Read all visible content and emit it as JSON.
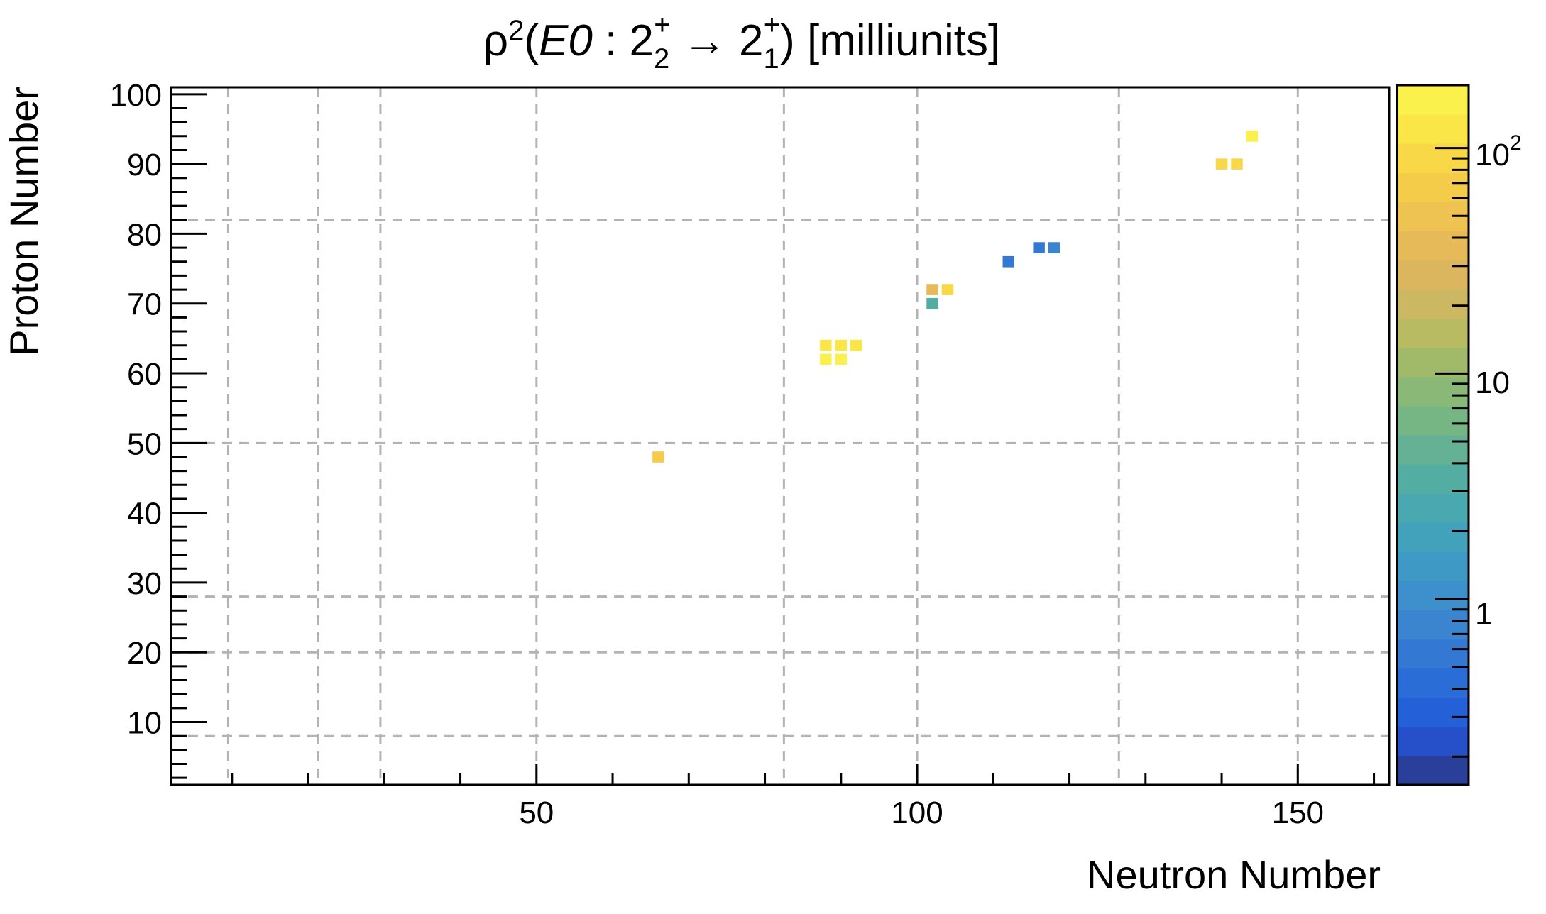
{
  "chart_data": {
    "type": "heatmap",
    "title": "ρ²(E0 : 2₂⁺ → 2₁⁺) [milliunits]",
    "title_parts": {
      "rho": "ρ",
      "rho_sup": "2",
      "open": "(",
      "e0": "E0",
      "colon": " : 2",
      "sub1": "2",
      "sup1": "+",
      "arrow": " → 2",
      "sub2": "1",
      "sup2": "+",
      "close": ") [milliunits]"
    },
    "xlabel": "Neutron Number",
    "ylabel": "Proton Number",
    "xlim": [
      2,
      162
    ],
    "ylim": [
      1,
      101
    ],
    "x_ticks": [
      50,
      100,
      150
    ],
    "x_tick_labels": [
      "50",
      "100",
      "150"
    ],
    "y_ticks": [
      10,
      20,
      30,
      40,
      50,
      60,
      70,
      80,
      90,
      100
    ],
    "y_tick_labels": [
      "10",
      "20",
      "30",
      "40",
      "50",
      "60",
      "70",
      "80",
      "90",
      "100"
    ],
    "x_gridlines": [
      9.5,
      21.3,
      29.5,
      50,
      82.5,
      100,
      126.5,
      150
    ],
    "y_gridlines": [
      8,
      20,
      28,
      50,
      82
    ],
    "grid": true,
    "z_scale": "log",
    "z_range": [
      0.15,
      190
    ],
    "colorbar_ticks": [
      1,
      10,
      100
    ],
    "colorbar_tick_labels": {
      "one": "1",
      "ten": "10",
      "hundred_base": "10",
      "hundred_exp": "2"
    },
    "colorbar_colors": [
      "#2a3f9a",
      "#2550c9",
      "#2460d8",
      "#2b6dd6",
      "#3378d3",
      "#3b84cf",
      "#3d90cb",
      "#3e9ac4",
      "#42a2bc",
      "#4aa8b0",
      "#54ada3",
      "#64b195",
      "#76b685",
      "#8ab877",
      "#a0ba6a",
      "#b8bb62",
      "#ccb862",
      "#dbb65e",
      "#e6ba58",
      "#efc351",
      "#f4cc4a",
      "#f8d846",
      "#fbe647",
      "#faf14d"
    ],
    "cells": [
      {
        "n": 66,
        "z": 48,
        "v": 60
      },
      {
        "n": 88,
        "z": 62,
        "v": 150
      },
      {
        "n": 90,
        "z": 62,
        "v": 150
      },
      {
        "n": 88,
        "z": 64,
        "v": 110
      },
      {
        "n": 90,
        "z": 64,
        "v": 110
      },
      {
        "n": 92,
        "z": 64,
        "v": 110
      },
      {
        "n": 102,
        "z": 70,
        "v": 3
      },
      {
        "n": 102,
        "z": 72,
        "v": 40
      },
      {
        "n": 104,
        "z": 72,
        "v": 90
      },
      {
        "n": 112,
        "z": 76,
        "v": 0.5
      },
      {
        "n": 116,
        "z": 78,
        "v": 0.6
      },
      {
        "n": 118,
        "z": 78,
        "v": 0.8
      },
      {
        "n": 140,
        "z": 90,
        "v": 80
      },
      {
        "n": 142,
        "z": 90,
        "v": 80
      },
      {
        "n": 144,
        "z": 94,
        "v": 180
      }
    ]
  }
}
